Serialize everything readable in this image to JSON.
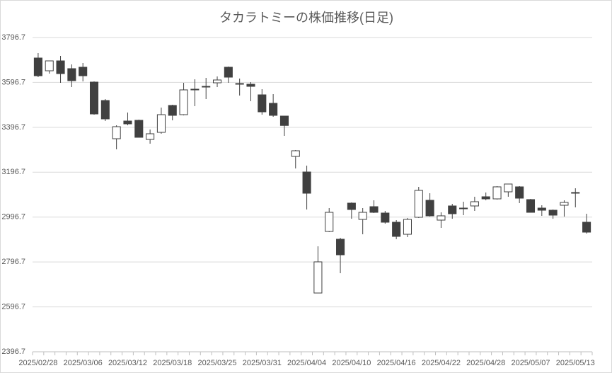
{
  "chart_data": {
    "type": "candlestick",
    "title": "タカラトミーの株価推移(日足)",
    "categories": [
      "2025/02/28",
      null,
      null,
      null,
      "2025/03/06",
      null,
      null,
      null,
      "2025/03/12",
      null,
      null,
      null,
      "2025/03/18",
      null,
      null,
      null,
      "2025/03/25",
      null,
      null,
      null,
      "2025/03/31",
      null,
      null,
      null,
      "2025/04/04",
      null,
      null,
      null,
      "2025/04/10",
      null,
      null,
      null,
      "2025/04/16",
      null,
      null,
      null,
      "2025/04/22",
      null,
      null,
      null,
      "2025/04/28",
      null,
      null,
      null,
      "2025/05/07",
      null,
      null,
      null,
      "2025/05/13",
      null
    ],
    "open": [
      3705.3,
      3648.5,
      3692.6,
      3658.0,
      3664.3,
      3598.1,
      3516.1,
      3345.8,
      3424.6,
      3427.8,
      3342.7,
      3374.2,
      3494.0,
      3453.0,
      3563.4,
      3579.1,
      3594.9,
      3664.3,
      3591.7,
      3588.6,
      3541.3,
      3503.5,
      3446.7,
      3267.0,
      3197.6,
      2658.4,
      2932.8,
      2898.1,
      3058.9,
      2986.4,
      3043.1,
      3014.7,
      2973.8,
      2920.1,
      2995.8,
      3071.5,
      2983.2,
      3046.3,
      3036.8,
      3046.3,
      3087.3,
      3077.8,
      3109.3,
      3131.4,
      3074.7,
      3036.8,
      3027.3,
      3049.4,
      3106.2,
      2973.8
    ],
    "high": [
      3727.3,
      3692.6,
      3714.7,
      3676.9,
      3683.2,
      3601.2,
      3522.4,
      3405.7,
      3462.5,
      3430.9,
      3386.8,
      3484.5,
      3497.2,
      3594.9,
      3610.7,
      3617.0,
      3623.3,
      3667.4,
      3613.8,
      3598.1,
      3566.5,
      3544.4,
      3446.7,
      3295.4,
      3226.0,
      2866.6,
      3036.8,
      2904.4,
      3062.0,
      3036.8,
      3071.5,
      3024.2,
      2983.2,
      2992.7,
      3131.4,
      3103.0,
      3017.9,
      3055.7,
      3065.2,
      3087.3,
      3106.2,
      3134.6,
      3144.0,
      3134.6,
      3077.8,
      3049.4,
      3030.5,
      3071.5,
      3125.1,
      3011.6
    ],
    "low": [
      3620.1,
      3635.9,
      3594.9,
      3576.0,
      3601.2,
      3453.0,
      3424.6,
      3298.5,
      3405.7,
      3352.1,
      3323.7,
      3367.9,
      3427.8,
      3449.9,
      3490.9,
      3522.4,
      3576.0,
      3594.9,
      3538.1,
      3512.9,
      3453.0,
      3443.6,
      3358.4,
      3213.4,
      3030.5,
      2658.4,
      2929.6,
      2746.7,
      2989.3,
      2920.1,
      3014.7,
      2967.5,
      2898.1,
      2907.5,
      2992.7,
      2999.0,
      2948.5,
      2989.3,
      3005.3,
      3024.2,
      3071.5,
      3074.7,
      3087.3,
      3058.9,
      3017.9,
      3002.2,
      2989.3,
      2999.0,
      3040.0,
      2923.3
    ],
    "close": [
      3626.4,
      3692.6,
      3635.9,
      3604.4,
      3626.4,
      3456.2,
      3434.1,
      3399.4,
      3412.0,
      3352.1,
      3367.9,
      3453.0,
      3449.9,
      3563.4,
      3566.5,
      3576.0,
      3607.5,
      3620.1,
      3588.6,
      3579.1,
      3465.6,
      3449.9,
      3404.9,
      3292.2,
      3103.0,
      2797.2,
      3017.9,
      2828.7,
      3030.5,
      3017.9,
      3017.9,
      2973.8,
      2910.7,
      2986.4,
      3115.6,
      3002.2,
      3002.2,
      3011.6,
      3033.7,
      3065.2,
      3077.8,
      3131.4,
      3144.0,
      3081.0,
      3017.9,
      3027.3,
      3005.3,
      3062.0,
      3106.2,
      2929.6
    ],
    "up_color": "#ffffff",
    "down_color": "#404040",
    "stroke": "#404040",
    "ylim": [
      2396.7,
      3796.7
    ],
    "yticks": [
      2396.7,
      2596.7,
      2796.7,
      2996.7,
      3196.7,
      3396.7,
      3596.7,
      3796.7
    ],
    "grid": true
  }
}
